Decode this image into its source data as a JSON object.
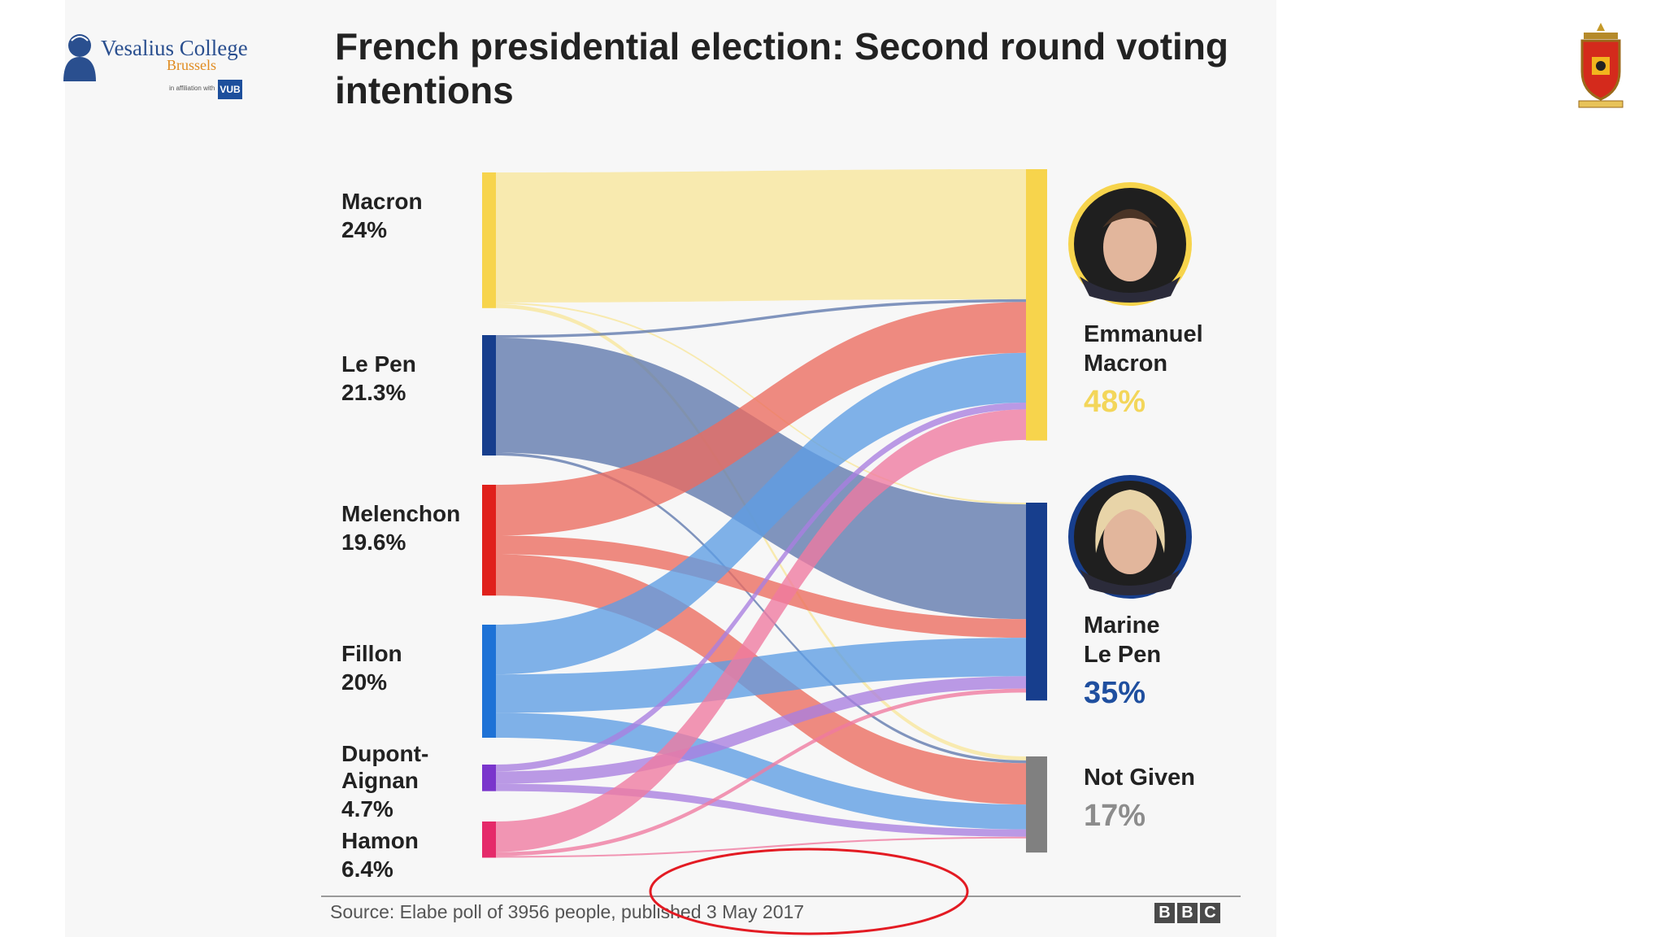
{
  "header": {
    "logo": {
      "name": "Vesalius College",
      "city": "Brussels",
      "affiliation": "in affiliation with",
      "partner": "VUB"
    },
    "crest": "Vesalius College crest"
  },
  "chart_data": {
    "type": "sankey",
    "title": "French presidential election: Second round voting intentions",
    "source_note": "Source: Elabe poll of 3956 people, published 3 May 2017",
    "credit": [
      "B",
      "B",
      "C"
    ],
    "sources": [
      {
        "id": "macron",
        "label": "Macron",
        "pct_label": "24%",
        "value": 24,
        "color": "#f7d44c",
        "flow_color": "#f9e79b"
      },
      {
        "id": "lepen",
        "label": "Le Pen",
        "pct_label": "21.3%",
        "value": 21.3,
        "color": "#173e8d",
        "flow_color": "#5f78ad"
      },
      {
        "id": "melenchon",
        "label": "Melenchon",
        "pct_label": "19.6%",
        "value": 19.6,
        "color": "#e0201b",
        "flow_color": "#ec6b5f"
      },
      {
        "id": "fillon",
        "label": "Fillon",
        "pct_label": "20%",
        "value": 20,
        "color": "#1e72d6",
        "flow_color": "#5e9ee4"
      },
      {
        "id": "dupont",
        "label": "Dupont-Aignan",
        "label_lines": [
          "Dupont-",
          "Aignan"
        ],
        "pct_label": "4.7%",
        "value": 4.7,
        "color": "#7a35cc",
        "flow_color": "#a97fe0"
      },
      {
        "id": "hamon",
        "label": "Hamon",
        "pct_label": "6.4%",
        "value": 6.4,
        "color": "#e52a6a",
        "flow_color": "#f07aa0"
      }
    ],
    "targets": [
      {
        "id": "tmacron",
        "label": "Emmanuel Macron",
        "label_lines": [
          "Emmanuel",
          "Macron"
        ],
        "pct_label": "48%",
        "value": 48,
        "color": "#f7d44c",
        "pct_color": "#f3d65a",
        "portrait": "Emmanuel Macron portrait",
        "ring_color": "#f7d44c"
      },
      {
        "id": "tlepen",
        "label": "Marine Le Pen",
        "label_lines": [
          "Marine",
          "Le Pen"
        ],
        "pct_label": "35%",
        "value": 35,
        "color": "#173e8d",
        "pct_color": "#1f4f9f",
        "portrait": "Marine Le Pen portrait",
        "ring_color": "#173e8d"
      },
      {
        "id": "tnone",
        "label": "Not Given",
        "label_lines": [
          "Not Given"
        ],
        "pct_label": "17%",
        "value": 17,
        "color": "#808080",
        "pct_color": "#8c8c8c",
        "portrait": null
      }
    ],
    "flows": [
      {
        "from": "macron",
        "to": "tmacron",
        "value": 23.0
      },
      {
        "from": "macron",
        "to": "tlepen",
        "value": 0.3
      },
      {
        "from": "macron",
        "to": "tnone",
        "value": 0.7
      },
      {
        "from": "lepen",
        "to": "tmacron",
        "value": 0.5
      },
      {
        "from": "lepen",
        "to": "tlepen",
        "value": 20.3
      },
      {
        "from": "lepen",
        "to": "tnone",
        "value": 0.5
      },
      {
        "from": "melenchon",
        "to": "tmacron",
        "value": 9.0
      },
      {
        "from": "melenchon",
        "to": "tlepen",
        "value": 3.3
      },
      {
        "from": "melenchon",
        "to": "tnone",
        "value": 7.3
      },
      {
        "from": "fillon",
        "to": "tmacron",
        "value": 8.8
      },
      {
        "from": "fillon",
        "to": "tlepen",
        "value": 6.8
      },
      {
        "from": "fillon",
        "to": "tnone",
        "value": 4.4
      },
      {
        "from": "dupont",
        "to": "tmacron",
        "value": 1.2
      },
      {
        "from": "dupont",
        "to": "tlepen",
        "value": 2.2
      },
      {
        "from": "dupont",
        "to": "tnone",
        "value": 1.3
      },
      {
        "from": "hamon",
        "to": "tmacron",
        "value": 5.4
      },
      {
        "from": "hamon",
        "to": "tlepen",
        "value": 0.7
      },
      {
        "from": "hamon",
        "to": "tnone",
        "value": 0.3
      }
    ]
  },
  "annotation": {
    "shape": "ellipse",
    "color": "#e31b23",
    "target": "publication date"
  }
}
